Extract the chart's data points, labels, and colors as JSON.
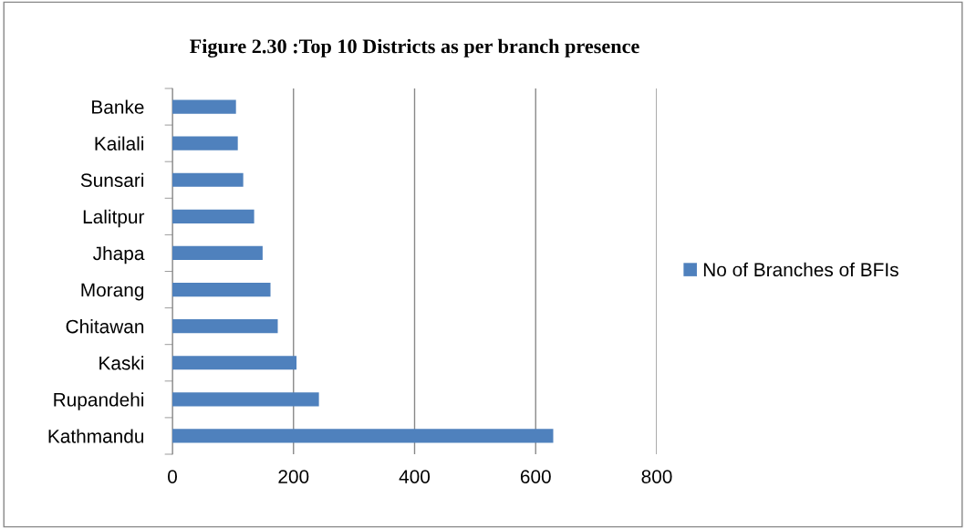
{
  "chart_data": {
    "type": "bar",
    "orientation": "horizontal",
    "title": "Figure 2.30 :Top 10 Districts as per branch presence",
    "categories": [
      "Banke",
      "Kailali",
      "Sunsari",
      "Lalitpur",
      "Jhapa",
      "Morang",
      "Chitawan",
      "Kaski",
      "Rupandehi",
      "Kathmandu"
    ],
    "series": [
      {
        "name": "No of Branches of BFIs",
        "color": "#4f81bd",
        "values": [
          105,
          108,
          117,
          135,
          149,
          162,
          174,
          205,
          242,
          629
        ]
      }
    ],
    "xlim": [
      0,
      800
    ],
    "xticks": [
      0,
      200,
      400,
      600,
      800
    ],
    "grid": "x",
    "legend": "right"
  }
}
